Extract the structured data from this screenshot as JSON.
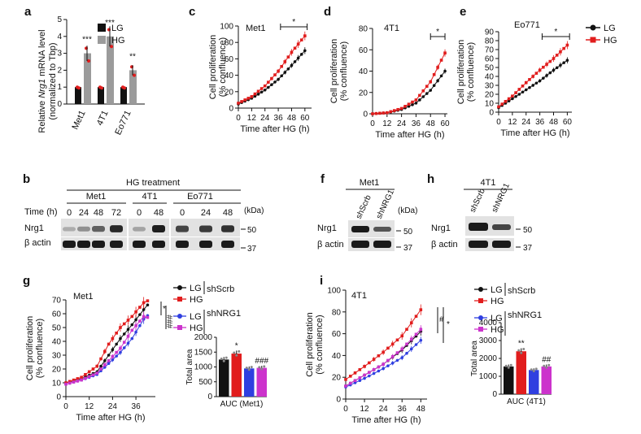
{
  "colors": {
    "lg": "#111111",
    "hg": "#e11d1d",
    "lg_shnrg1": "#2f3fe0",
    "hg_shnrg1": "#cc33cc",
    "bar_lg": "#111111",
    "bar_hg": "#9b9b9b"
  },
  "panels": {
    "a": "a",
    "b": "b",
    "c": "c",
    "d": "d",
    "e": "e",
    "f": "f",
    "g": "g",
    "h": "h",
    "i": "i"
  },
  "chart_data": [
    {
      "id": "a",
      "type": "bar",
      "ylabel_prefix": "Relative ",
      "ylabel_italic": "Nrg1",
      "ylabel_suffix": " mRNA level",
      "ylabel2": "(normalized to Tbp)",
      "categories": [
        "Met1",
        "4T1",
        "Eo771"
      ],
      "series": [
        {
          "name": "LG",
          "values": [
            1.0,
            1.0,
            1.0
          ]
        },
        {
          "name": "HG",
          "values": [
            3.0,
            4.0,
            2.0
          ]
        }
      ],
      "significance": [
        "***",
        "***",
        "**"
      ],
      "yticks": [
        "0",
        "1",
        "2",
        "3",
        "4",
        "5"
      ],
      "ylim": [
        0,
        5
      ],
      "legend": [
        "LG",
        "HG"
      ]
    },
    {
      "id": "c",
      "type": "line",
      "title": "Met1",
      "ylabel": "Cell proliferation",
      "ylabel2": "(% confluence)",
      "xlabel": "Time after HG (h)",
      "xticks": [
        "0",
        "12",
        "24",
        "36",
        "48",
        "60"
      ],
      "yticks": [
        "0",
        "20",
        "40",
        "60",
        "80",
        "100"
      ],
      "xlim": [
        0,
        66
      ],
      "ylim": [
        0,
        100
      ],
      "sig": "*",
      "sig_range": [
        38,
        62
      ],
      "series": [
        {
          "name": "LG",
          "values": [
            [
              0,
              5
            ],
            [
              12,
              12
            ],
            [
              24,
              22
            ],
            [
              36,
              35
            ],
            [
              48,
              52
            ],
            [
              60,
              70
            ]
          ]
        },
        {
          "name": "HG",
          "values": [
            [
              0,
              6
            ],
            [
              12,
              14
            ],
            [
              24,
              27
            ],
            [
              36,
              45
            ],
            [
              48,
              68
            ],
            [
              60,
              88
            ]
          ]
        }
      ]
    },
    {
      "id": "d",
      "type": "line",
      "title": "4T1",
      "ylabel": "Cell proliferation",
      "ylabel2": "(% confluence)",
      "xlabel": "Time after HG (h)",
      "xticks": [
        "0",
        "12",
        "24",
        "36",
        "48",
        "60"
      ],
      "yticks": [
        "0",
        "20",
        "40",
        "60",
        "80"
      ],
      "xlim": [
        0,
        62
      ],
      "ylim": [
        0,
        80
      ],
      "sig": "*",
      "sig_range": [
        48,
        60
      ],
      "series": [
        {
          "name": "LG",
          "values": [
            [
              0,
              0
            ],
            [
              12,
              1
            ],
            [
              24,
              4
            ],
            [
              36,
              10
            ],
            [
              48,
              22
            ],
            [
              60,
              40
            ]
          ]
        },
        {
          "name": "HG",
          "values": [
            [
              0,
              0
            ],
            [
              12,
              1
            ],
            [
              24,
              5
            ],
            [
              36,
              13
            ],
            [
              48,
              30
            ],
            [
              60,
              57
            ]
          ]
        }
      ]
    },
    {
      "id": "e",
      "type": "line",
      "title": "Eo771",
      "ylabel": "Cell proliferation",
      "ylabel2": "(% confluence)",
      "xlabel": "Time after HG (h)",
      "xticks": [
        "0",
        "12",
        "24",
        "36",
        "48",
        "60"
      ],
      "yticks": [
        "0",
        "10",
        "20",
        "30",
        "40",
        "50",
        "60",
        "70",
        "80",
        "90"
      ],
      "xlim": [
        0,
        64
      ],
      "ylim": [
        0,
        90
      ],
      "sig": "*",
      "sig_range": [
        38,
        62
      ],
      "legend": [
        "LG",
        "HG"
      ],
      "series": [
        {
          "name": "LG",
          "values": [
            [
              0,
              5
            ],
            [
              12,
              15
            ],
            [
              24,
              25
            ],
            [
              36,
              35
            ],
            [
              48,
              47
            ],
            [
              60,
              58
            ]
          ]
        },
        {
          "name": "HG",
          "values": [
            [
              0,
              6
            ],
            [
              12,
              18
            ],
            [
              24,
              33
            ],
            [
              36,
              47
            ],
            [
              48,
              60
            ],
            [
              60,
              75
            ]
          ]
        }
      ]
    },
    {
      "id": "g",
      "type": "line",
      "title": "Met1",
      "ylabel": "Cell proliferation",
      "ylabel2": "(% confluence)",
      "xlabel": "Time after HG (h)",
      "xticks": [
        "0",
        "12",
        "24",
        "36"
      ],
      "yticks": [
        "0",
        "10",
        "20",
        "30",
        "40",
        "50",
        "60",
        "70"
      ],
      "xlim": [
        0,
        46
      ],
      "ylim": [
        0,
        70
      ],
      "legend": [
        {
          "label": "LG",
          "group": "shScrb"
        },
        {
          "label": "HG",
          "group": "shScrb"
        },
        {
          "label": "LG",
          "group": "shNRG1"
        },
        {
          "label": "HG",
          "group": "shNRG1"
        }
      ],
      "sig_marks": [
        "*",
        "###"
      ],
      "series": [
        {
          "name": "LG shScrb",
          "values": [
            [
              0,
              10
            ],
            [
              8,
              13
            ],
            [
              16,
              18
            ],
            [
              22,
              30
            ],
            [
              28,
              42
            ],
            [
              34,
              52
            ],
            [
              40,
              63
            ],
            [
              43,
              68
            ]
          ]
        },
        {
          "name": "HG shScrb",
          "values": [
            [
              0,
              10
            ],
            [
              8,
              14
            ],
            [
              16,
              22
            ],
            [
              22,
              38
            ],
            [
              28,
              50
            ],
            [
              34,
              58
            ],
            [
              40,
              68
            ],
            [
              43,
              70
            ]
          ]
        },
        {
          "name": "LG shNRG1",
          "values": [
            [
              0,
              9
            ],
            [
              8,
              12
            ],
            [
              16,
              16
            ],
            [
              22,
              24
            ],
            [
              28,
              32
            ],
            [
              34,
              42
            ],
            [
              40,
              56
            ],
            [
              43,
              60
            ]
          ]
        },
        {
          "name": "HG shNRG1",
          "values": [
            [
              0,
              9
            ],
            [
              8,
              12
            ],
            [
              16,
              17
            ],
            [
              22,
              26
            ],
            [
              28,
              35
            ],
            [
              34,
              48
            ],
            [
              40,
              58
            ],
            [
              43,
              57
            ]
          ]
        }
      ]
    },
    {
      "id": "g_auc",
      "type": "bar",
      "xlabel": "AUC (Met1)",
      "ylabel": "Total area",
      "yticks": [
        "0",
        "500",
        "1000",
        "1500",
        "2000"
      ],
      "ylim": [
        0,
        2000
      ],
      "categories": [
        "LG shScrb",
        "HG shScrb",
        "LG shNRG1",
        "HG shNRG1"
      ],
      "values": [
        1250,
        1450,
        950,
        970
      ],
      "significance": [
        "",
        "*",
        "",
        "###"
      ]
    },
    {
      "id": "i",
      "type": "line",
      "title": "4T1",
      "ylabel": "Cell proliferation",
      "ylabel2": "(% confluence)",
      "xlabel": "Time after HG (h)",
      "xticks": [
        "0",
        "12",
        "24",
        "36",
        "48"
      ],
      "yticks": [
        "0",
        "20",
        "40",
        "60",
        "80",
        "100"
      ],
      "xlim": [
        0,
        52
      ],
      "ylim": [
        0,
        100
      ],
      "legend": [
        {
          "label": "LG",
          "group": "shScrb"
        },
        {
          "label": "HG",
          "group": "shScrb"
        },
        {
          "label": "LG",
          "group": "shNRG1"
        },
        {
          "label": "HG",
          "group": "shNRG1"
        }
      ],
      "sig_marks": [
        "#",
        "*"
      ],
      "series": [
        {
          "name": "LG shScrb",
          "values": [
            [
              0,
              12
            ],
            [
              12,
              22
            ],
            [
              24,
              32
            ],
            [
              36,
              45
            ],
            [
              48,
              62
            ]
          ]
        },
        {
          "name": "HG shScrb",
          "values": [
            [
              0,
              18
            ],
            [
              12,
              30
            ],
            [
              24,
              43
            ],
            [
              36,
              58
            ],
            [
              48,
              82
            ]
          ]
        },
        {
          "name": "LG shNRG1",
          "values": [
            [
              0,
              11
            ],
            [
              12,
              19
            ],
            [
              24,
              28
            ],
            [
              36,
              38
            ],
            [
              48,
              54
            ]
          ]
        },
        {
          "name": "HG shNRG1",
          "values": [
            [
              0,
              12
            ],
            [
              12,
              22
            ],
            [
              24,
              32
            ],
            [
              36,
              46
            ],
            [
              48,
              64
            ]
          ]
        }
      ]
    },
    {
      "id": "i_auc",
      "type": "bar",
      "xlabel": "AUC (4T1)",
      "ylabel": "Total area",
      "yticks": [
        "0",
        "1000",
        "2000",
        "3000",
        "4000"
      ],
      "ylim": [
        0,
        4000
      ],
      "categories": [
        "LG shScrb",
        "HG shScrb",
        "LG shNRG1",
        "HG shNRG1"
      ],
      "values": [
        1550,
        2400,
        1350,
        1550
      ],
      "significance": [
        "",
        "**",
        "",
        "##"
      ]
    }
  ],
  "blot_b": {
    "header": "HG treatment",
    "groups": [
      "Met1",
      "4T1",
      "Eo771"
    ],
    "time_label": "Time (h)",
    "times": [
      "0",
      "24",
      "48",
      "72",
      "0",
      "48",
      "0",
      "24",
      "48"
    ],
    "rows": [
      "Nrg1",
      "β actin"
    ],
    "kda": "(kDa)",
    "mw": [
      "50",
      "37"
    ]
  },
  "blot_f": {
    "group": "Met1",
    "lanes": [
      "shScrb",
      "shNRG1"
    ],
    "rows": [
      "Nrg1",
      "β actin"
    ],
    "kda": "(kDa)",
    "mw": [
      "50",
      "37"
    ]
  },
  "blot_h": {
    "group": "4T1",
    "lanes": [
      "shScrb",
      "shNRG1"
    ],
    "rows": [
      "Nrg1",
      "β actin"
    ],
    "mw": [
      "50",
      "37"
    ]
  }
}
